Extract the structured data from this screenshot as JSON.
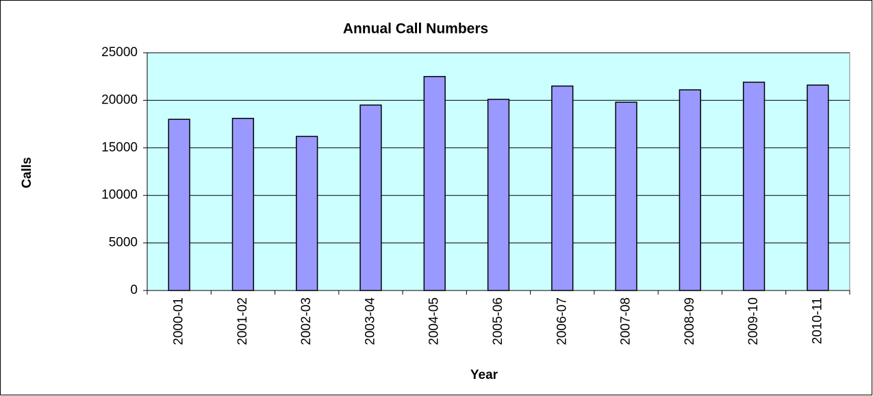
{
  "chart_data": {
    "type": "bar",
    "title": "Annual Call Numbers",
    "x_label": "Year",
    "y_label": "Calls",
    "categories": [
      "2000-01",
      "2001-02",
      "2002-03",
      "2003-04",
      "2004-05",
      "2005-06",
      "2006-07",
      "2007-08",
      "2008-09",
      "2009-10",
      "2010-11"
    ],
    "values": [
      18000,
      18100,
      16200,
      19500,
      22500,
      20100,
      21500,
      19800,
      21100,
      21900,
      21600
    ],
    "color": "#9999ff",
    "plot_background": "#ccffff",
    "ylim": [
      0,
      25000
    ],
    "yticks": [
      0,
      5000,
      10000,
      15000,
      20000,
      25000
    ],
    "grid": true
  }
}
